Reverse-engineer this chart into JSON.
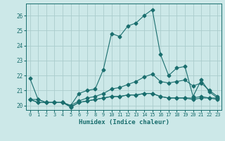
{
  "xlabel": "Humidex (Indice chaleur)",
  "bg_color": "#cce8e8",
  "grid_color": "#aacccc",
  "line_color": "#1a6e6e",
  "xlim": [
    -0.5,
    23.5
  ],
  "ylim": [
    19.7,
    26.8
  ],
  "yticks": [
    20,
    21,
    22,
    23,
    24,
    25,
    26
  ],
  "xticks": [
    0,
    1,
    2,
    3,
    4,
    5,
    6,
    7,
    8,
    9,
    10,
    11,
    12,
    13,
    14,
    15,
    16,
    17,
    18,
    19,
    20,
    21,
    22,
    23
  ],
  "series": [
    {
      "x": [
        0,
        1,
        2,
        3,
        4,
        5,
        6,
        7,
        8,
        9,
        10,
        11,
        12,
        13,
        14,
        15,
        16,
        17,
        18,
        19,
        20,
        21,
        22,
        23
      ],
      "y": [
        21.8,
        20.4,
        20.2,
        20.2,
        20.2,
        20.0,
        20.8,
        21.0,
        21.1,
        22.4,
        24.8,
        24.6,
        25.3,
        25.5,
        26.0,
        26.4,
        23.4,
        22.0,
        22.5,
        22.6,
        20.6,
        21.7,
        20.9,
        20.5
      ]
    },
    {
      "x": [
        0,
        1,
        2,
        3,
        4,
        5,
        6,
        7,
        8,
        9,
        10,
        11,
        12,
        13,
        14,
        15,
        16,
        17,
        18,
        19,
        20,
        21,
        22,
        23
      ],
      "y": [
        20.4,
        20.4,
        20.2,
        20.2,
        20.2,
        20.0,
        20.3,
        20.5,
        20.6,
        20.8,
        21.1,
        21.2,
        21.4,
        21.6,
        21.9,
        22.1,
        21.6,
        21.5,
        21.6,
        21.7,
        21.3,
        21.5,
        21.0,
        20.6
      ]
    },
    {
      "x": [
        0,
        1,
        2,
        3,
        4,
        5,
        6,
        7,
        8,
        9,
        10,
        11,
        12,
        13,
        14,
        15,
        16,
        17,
        18,
        19,
        20,
        21,
        22,
        23
      ],
      "y": [
        20.4,
        20.2,
        20.2,
        20.2,
        20.2,
        19.9,
        20.2,
        20.3,
        20.4,
        20.5,
        20.6,
        20.6,
        20.7,
        20.7,
        20.8,
        20.8,
        20.6,
        20.5,
        20.5,
        20.5,
        20.5,
        20.6,
        20.5,
        20.5
      ]
    },
    {
      "x": [
        0,
        1,
        2,
        3,
        4,
        5,
        6,
        7,
        8,
        9,
        10,
        11,
        12,
        13,
        14,
        15,
        16,
        17,
        18,
        19,
        20,
        21,
        22,
        23
      ],
      "y": [
        20.4,
        20.2,
        20.2,
        20.2,
        20.2,
        19.9,
        20.2,
        20.3,
        20.4,
        20.5,
        20.6,
        20.6,
        20.7,
        20.7,
        20.8,
        20.8,
        20.6,
        20.5,
        20.5,
        20.5,
        20.4,
        20.5,
        20.5,
        20.4
      ]
    }
  ]
}
